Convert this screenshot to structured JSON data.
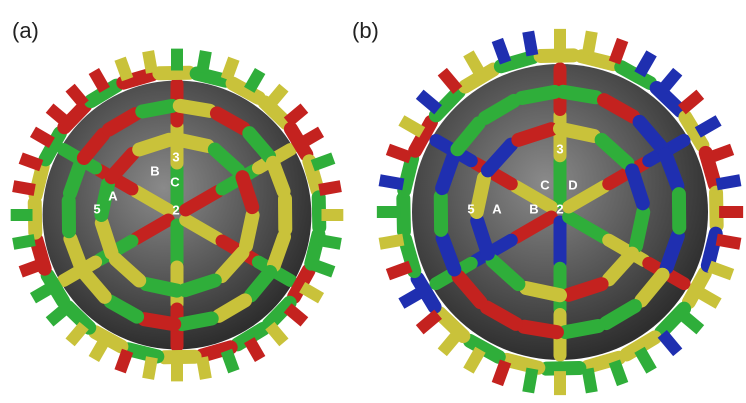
{
  "panels": [
    {
      "label": "(a)",
      "markers": [
        "3",
        "B",
        "C",
        "5",
        "A",
        "2"
      ]
    },
    {
      "label": "(b)",
      "markers": [
        "3",
        "C",
        "D",
        "5",
        "A",
        "B",
        "2"
      ]
    }
  ]
}
